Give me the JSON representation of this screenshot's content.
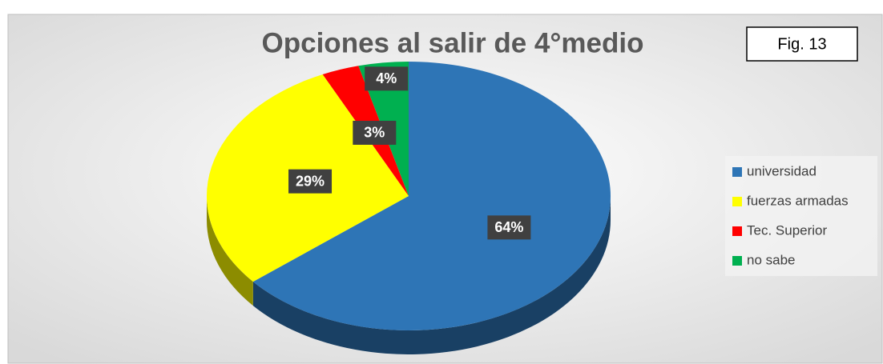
{
  "chart_data": {
    "type": "pie3d",
    "title": "Opciones al salir de 4°medio",
    "annotation": "Fig. 13",
    "categories": [
      "universidad",
      "fuerzas armadas",
      "Tec. Superior",
      "no sabe"
    ],
    "values": [
      64,
      29,
      3,
      4
    ],
    "value_labels": [
      "64%",
      "29%",
      "3%",
      "4%"
    ],
    "colors": [
      "#2e75b6",
      "#ffff00",
      "#ff0000",
      "#00b050"
    ],
    "legend": "right"
  }
}
